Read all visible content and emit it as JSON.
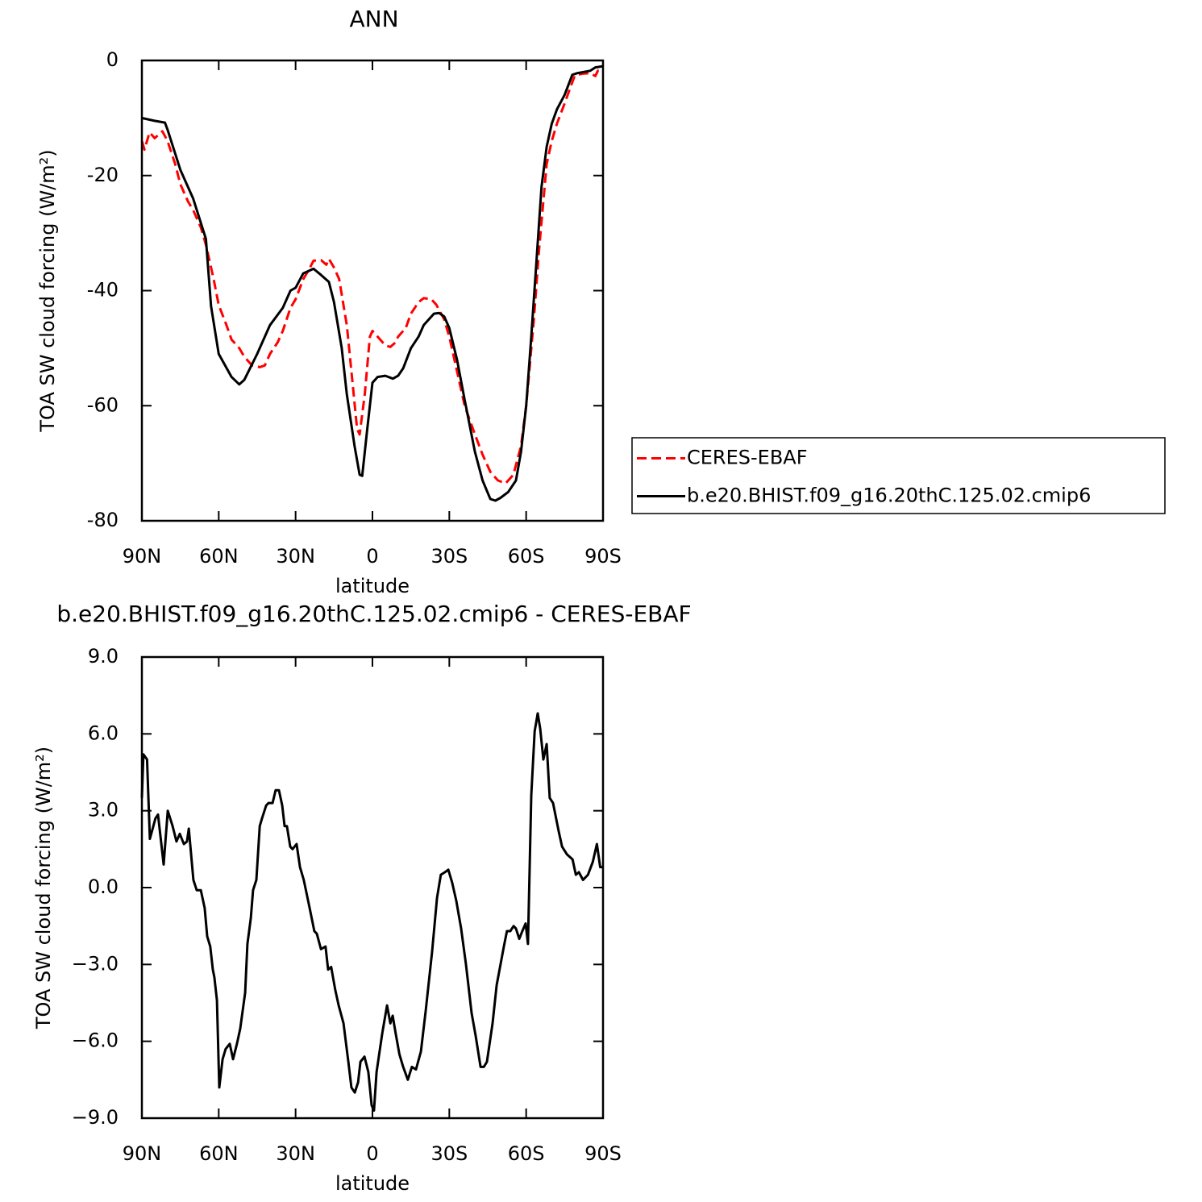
{
  "chart_data": [
    {
      "type": "line",
      "title": "ANN",
      "xlabel": "latitude",
      "ylabel": "TOA SW cloud forcing (W/m²)",
      "xlim": [
        90,
        -90
      ],
      "xticks": [
        {
          "value": 90,
          "label": "90N"
        },
        {
          "value": 60,
          "label": "60N"
        },
        {
          "value": 30,
          "label": "30N"
        },
        0,
        {
          "value": -30,
          "label": "30S"
        },
        {
          "value": -60,
          "label": "60S"
        },
        {
          "value": -90,
          "label": "90S"
        }
      ],
      "ylim": [
        -80,
        0
      ],
      "yticks": [
        -80,
        -60,
        -40,
        -20,
        0
      ],
      "legend": "right",
      "series": [
        {
          "name": "CERES-EBAF",
          "color": "#ff0000",
          "linestyle": "dashed",
          "x": [
            90,
            89,
            87,
            85,
            82,
            80,
            77,
            75,
            72,
            70,
            67,
            65,
            62,
            60,
            57,
            55,
            52,
            50,
            47,
            44,
            42,
            40,
            37,
            35,
            32,
            30,
            27,
            25,
            23,
            20,
            18,
            17,
            15,
            13,
            10,
            8,
            6,
            5,
            3,
            1,
            0,
            -2,
            -5,
            -7,
            -9,
            -10,
            -13,
            -15,
            -18,
            -20,
            -23,
            -25,
            -28,
            -30,
            -33,
            -36,
            -40,
            -43,
            -46,
            -49,
            -52,
            -55,
            -58,
            -60,
            -63,
            -65,
            -67,
            -68,
            -70,
            -72,
            -75,
            -77,
            -79,
            -82,
            -85,
            -87,
            -88,
            -90
          ],
          "values": [
            -14,
            -15.5,
            -12.5,
            -13.5,
            -12.3,
            -14,
            -18,
            -21.5,
            -24.5,
            -26,
            -29,
            -32,
            -38,
            -42.5,
            -46,
            -48.5,
            -50,
            -51.5,
            -53,
            -53.3,
            -53,
            -51,
            -49,
            -47,
            -43,
            -41.5,
            -38,
            -36.5,
            -34.8,
            -34.7,
            -35.5,
            -34.5,
            -36,
            -38,
            -46,
            -55,
            -64,
            -65,
            -58,
            -48,
            -47,
            -48,
            -49.5,
            -49.8,
            -49,
            -48,
            -46.5,
            -44,
            -42,
            -41.3,
            -41.5,
            -42.5,
            -45,
            -48,
            -54,
            -60,
            -65,
            -68.5,
            -71.5,
            -73,
            -73.5,
            -72,
            -67,
            -60,
            -45,
            -33,
            -23,
            -18,
            -14,
            -11,
            -7.5,
            -5,
            -2.6,
            -2.3,
            -2.2,
            -2.7,
            -1.8,
            -1.7
          ]
        },
        {
          "name": "b.e20.BHIST.f09_g16.20thC.125.02.cmip6",
          "color": "#000000",
          "linestyle": "solid",
          "x": [
            90,
            85,
            81,
            80,
            75,
            72,
            70,
            65,
            63,
            60,
            55,
            52,
            50,
            45,
            42,
            40,
            35,
            32,
            30,
            27,
            23,
            20,
            17,
            15,
            12,
            10,
            7,
            5,
            4,
            2,
            0,
            -2,
            -5,
            -8,
            -10,
            -12,
            -15,
            -18,
            -20,
            -24,
            -26,
            -28,
            -30,
            -33,
            -36,
            -40,
            -43,
            -46,
            -48,
            -50,
            -53,
            -56,
            -58,
            -60,
            -62,
            -64,
            -66,
            -68,
            -70,
            -72,
            -75,
            -78,
            -80,
            -85,
            -87,
            -90
          ],
          "values": [
            -10,
            -10.5,
            -10.8,
            -12,
            -19,
            -22,
            -24,
            -31,
            -42.7,
            -51,
            -55,
            -56.3,
            -55.5,
            -51,
            -48,
            -46,
            -43,
            -40,
            -39.5,
            -37,
            -36.2,
            -37.3,
            -38.5,
            -42,
            -50,
            -58,
            -67,
            -72,
            -72.2,
            -64,
            -56,
            -55,
            -54.8,
            -55.3,
            -54.8,
            -53.5,
            -50,
            -48,
            -46,
            -44,
            -43.9,
            -44.5,
            -46.5,
            -52,
            -59,
            -68,
            -73,
            -76.2,
            -76.5,
            -76,
            -75,
            -73,
            -68,
            -60,
            -48,
            -35,
            -22,
            -15,
            -11,
            -8.5,
            -6,
            -2.5,
            -2.2,
            -1.8,
            -1.2,
            -1
          ]
        }
      ]
    },
    {
      "type": "line",
      "title": "b.e20.BHIST.f09_g16.20thC.125.02.cmip6 - CERES-EBAF",
      "xlabel": "latitude",
      "ylabel": "TOA SW cloud forcing (W/m²)",
      "xlim": [
        90,
        -90
      ],
      "xticks": [
        {
          "value": 90,
          "label": "90N"
        },
        {
          "value": 60,
          "label": "60N"
        },
        {
          "value": 30,
          "label": "30N"
        },
        0,
        {
          "value": -30,
          "label": "30S"
        },
        {
          "value": -60,
          "label": "60S"
        },
        {
          "value": -90,
          "label": "90S"
        }
      ],
      "ylim": [
        -9,
        9
      ],
      "yticks": [
        {
          "value": -9,
          "label": "−9.0"
        },
        {
          "value": -6,
          "label": "−6.0"
        },
        {
          "value": -3,
          "label": "−3.0"
        },
        {
          "value": 0,
          "label": "0.0"
        },
        {
          "value": 3,
          "label": "3.0"
        },
        {
          "value": 6,
          "label": "6.0"
        },
        {
          "value": 9,
          "label": "9.0"
        }
      ],
      "series": [
        {
          "color": "#000000",
          "linestyle": "solid",
          "x": [
            90,
            89.4,
            88,
            86.9,
            84.7,
            83.7,
            81.5,
            79.9,
            78,
            76.5,
            75.2,
            73.6,
            72.4,
            71.7,
            69.9,
            68.6,
            67,
            65.5,
            64.5,
            63.3,
            62.3,
            61.7,
            60.7,
            59.8,
            58.5,
            57.3,
            55.7,
            54.4,
            52.9,
            51.6,
            49.7,
            48.8,
            47.5,
            46.6,
            45.3,
            44,
            43.1,
            41.5,
            40.6,
            39,
            37.8,
            36.5,
            35.2,
            34.3,
            33.4,
            32.1,
            31.2,
            29.6,
            28.3,
            26.8,
            24.5,
            22.7,
            21.7,
            20.1,
            18.3,
            17.3,
            16.1,
            14.5,
            13.2,
            11.3,
            9.4,
            8.2,
            6.9,
            5.6,
            4.7,
            3.1,
            1.6,
            0.3,
            -0.6,
            -1.6,
            -3.8,
            -5.7,
            -7,
            -7.9,
            -8.9,
            -10.5,
            -12,
            -13.8,
            -15.4,
            -17,
            -18.9,
            -20.8,
            -23.3,
            -25.2,
            -26.7,
            -28.3,
            -29.6,
            -31.1,
            -32.7,
            -34.6,
            -36.5,
            -38.7,
            -40.3,
            -42.2,
            -43.5,
            -44.7,
            -46.9,
            -48.5,
            -51.3,
            -52.5,
            -53.8,
            -55.1,
            -56,
            -57.3,
            -58.5,
            -59.8,
            -60.7,
            -62,
            -63.3,
            -64.5,
            -65.5,
            -66.7,
            -68,
            -69.2,
            -70.5,
            -72.7,
            -74,
            -75.9,
            -78.1,
            -79.4,
            -80.6,
            -82.2,
            -84.1,
            -86,
            -87.6,
            -88.9,
            -90
          ],
          "values": [
            3.5,
            5.2,
            5.0,
            1.9,
            2.7,
            2.85,
            0.9,
            3.0,
            2.4,
            1.8,
            2.1,
            1.7,
            1.8,
            2.3,
            0.3,
            -0.1,
            -0.1,
            -0.8,
            -1.9,
            -2.3,
            -3.2,
            -3.5,
            -4.4,
            -7.8,
            -6.7,
            -6.3,
            -6.1,
            -6.7,
            -6.1,
            -5.5,
            -4.1,
            -2.2,
            -1.2,
            -0.1,
            0.3,
            2.4,
            2.7,
            3.2,
            3.3,
            3.3,
            3.8,
            3.8,
            3.2,
            2.4,
            2.4,
            1.6,
            1.5,
            1.7,
            0.8,
            0.3,
            -0.8,
            -1.7,
            -1.8,
            -2.4,
            -2.3,
            -3.2,
            -3.1,
            -4.0,
            -4.6,
            -5.3,
            -6.8,
            -7.8,
            -8.0,
            -7.6,
            -6.8,
            -6.6,
            -7.2,
            -8.5,
            -8.7,
            -7.2,
            -5.7,
            -4.6,
            -5.3,
            -5.0,
            -5.6,
            -6.5,
            -7.0,
            -7.5,
            -7.0,
            -7.1,
            -6.4,
            -4.8,
            -2.5,
            -0.4,
            0.5,
            0.6,
            0.7,
            0.2,
            -0.5,
            -1.6,
            -3.0,
            -4.9,
            -5.8,
            -7.0,
            -7.0,
            -6.8,
            -5.3,
            -3.8,
            -2.3,
            -1.7,
            -1.7,
            -1.5,
            -1.6,
            -2.0,
            -1.7,
            -1.4,
            -2.2,
            3.6,
            6.1,
            6.8,
            6.2,
            5.0,
            5.6,
            3.5,
            3.3,
            2.2,
            1.6,
            1.3,
            1.1,
            0.5,
            0.6,
            0.3,
            0.5,
            1.0,
            1.7,
            0.8,
            0.8
          ]
        }
      ]
    }
  ]
}
